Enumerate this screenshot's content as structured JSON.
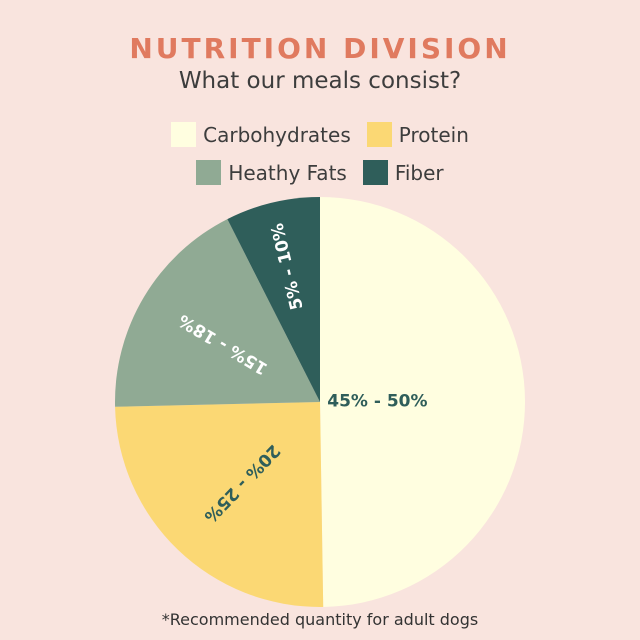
{
  "header": {
    "title": "NUTRITION DIVISION",
    "subtitle": "What our meals consist?"
  },
  "chart_data": {
    "type": "pie",
    "title": "NUTRITION DIVISION",
    "subtitle": "What our meals consist?",
    "legend_placement": "top",
    "slices": [
      {
        "name": "Carbohydrates",
        "value": 50,
        "label": "45% - 50%",
        "color": "#fffee0",
        "label_color": "#2f5e5a"
      },
      {
        "name": "Protein",
        "value": 25,
        "label": "20% - 25%",
        "color": "#fbd874",
        "label_color": "#2f5e5a"
      },
      {
        "name": "Heathy Fats",
        "value": 18,
        "label": "15% - 18%",
        "color": "#90aa94",
        "label_color": "#ffffff"
      },
      {
        "name": "Fiber",
        "value": 7.5,
        "label": "5% - 10%",
        "color": "#2f5e5a",
        "label_color": "#ffffff"
      }
    ]
  },
  "footnote": "*Recommended quantity for adult dogs"
}
